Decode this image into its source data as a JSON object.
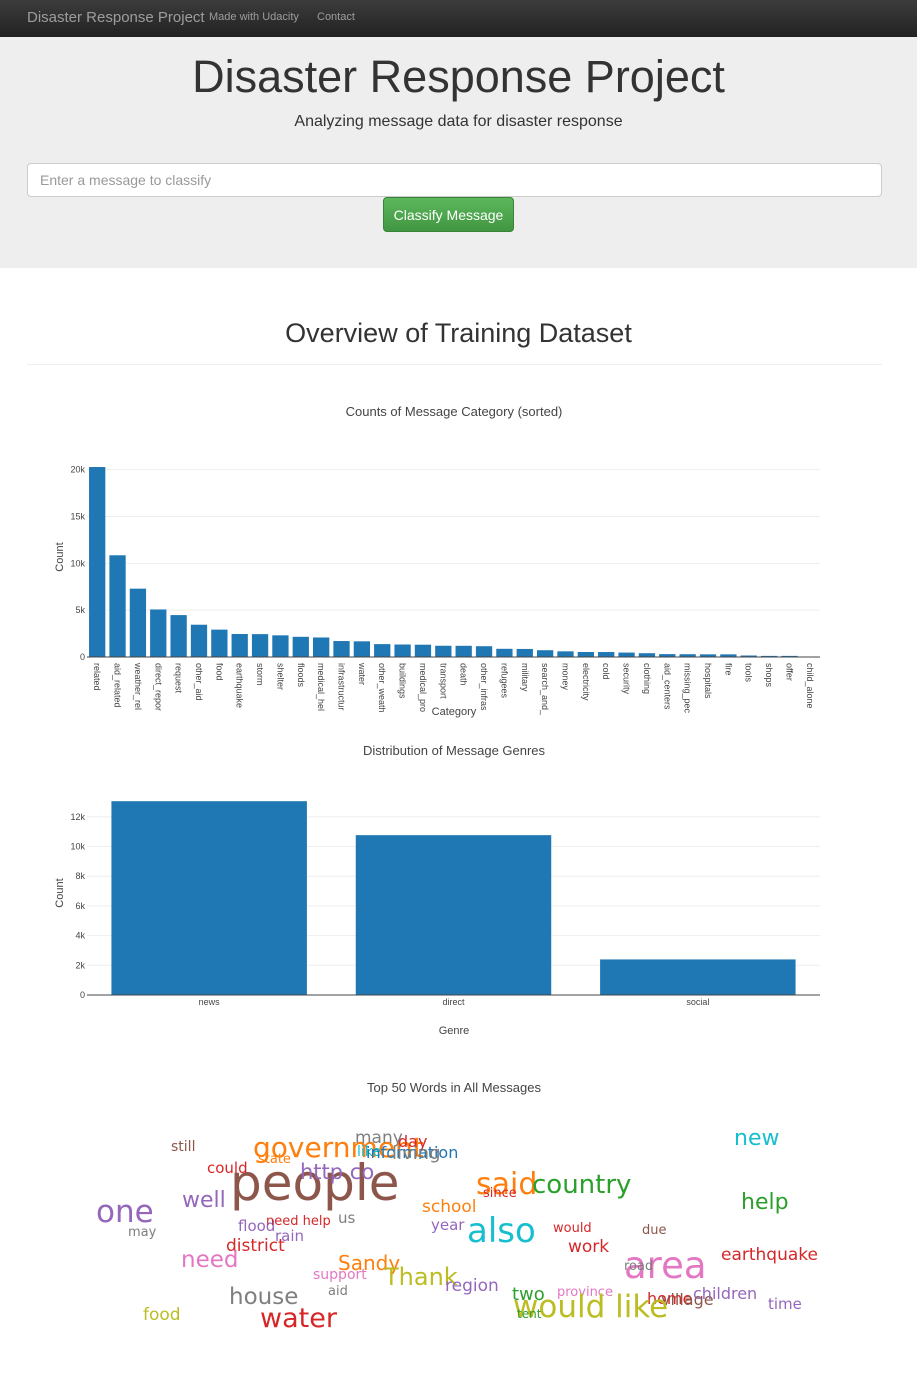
{
  "navbar": {
    "brand": "Disaster Response Project",
    "links": [
      "Made with Udacity",
      "Contact"
    ]
  },
  "header": {
    "title": "Disaster Response Project",
    "subtitle": "Analyzing message data for disaster response",
    "input_placeholder": "Enter a message to classify",
    "button_label": "Classify Message"
  },
  "overview_title": "Overview of Training Dataset",
  "chart_data": [
    {
      "type": "bar",
      "title": "Counts of Message Category (sorted)",
      "xlabel": "Category",
      "ylabel": "Count",
      "ylim": [
        0,
        20500
      ],
      "yticks": [
        0,
        5000,
        10000,
        15000,
        20000
      ],
      "ytick_labels": [
        "0",
        "5k",
        "10k",
        "15k",
        "20k"
      ],
      "categories": [
        "related",
        "aid_related",
        "weather_rel",
        "direct_repor",
        "request",
        "other_aid",
        "food",
        "earthquake",
        "storm",
        "shelter",
        "floods",
        "medical_hel",
        "infrastructur",
        "water",
        "other_weath",
        "buildings",
        "medical_pro",
        "transport",
        "death",
        "other_infras",
        "refugees",
        "military",
        "search_and_",
        "money",
        "electricity",
        "cold",
        "security",
        "clothing",
        "aid_centers",
        "missing_pec",
        "hospitals",
        "fire",
        "tools",
        "shops",
        "offer",
        "child_alone"
      ],
      "values": [
        20282,
        10860,
        7297,
        5075,
        4474,
        3446,
        2923,
        2455,
        2443,
        2314,
        2155,
        2084,
        1705,
        1672,
        1376,
        1333,
        1313,
        1201,
        1194,
        1151,
        875,
        860,
        724,
        604,
        532,
        530,
        471,
        405,
        309,
        298,
        283,
        282,
        159,
        120,
        118,
        0
      ],
      "series_color": "#1f77b4",
      "grid": true
    },
    {
      "type": "bar",
      "title": "Distribution of Message Genres",
      "xlabel": "Genre",
      "ylabel": "Count",
      "ylim": [
        0,
        13000
      ],
      "yticks": [
        0,
        2000,
        4000,
        6000,
        8000,
        10000,
        12000
      ],
      "ytick_labels": [
        "0",
        "2k",
        "4k",
        "6k",
        "8k",
        "10k",
        "12k"
      ],
      "categories": [
        "news",
        "direct",
        "social"
      ],
      "values": [
        13054,
        10766,
        2396
      ],
      "series_color": "#1f77b4",
      "grid": true
    }
  ],
  "wordcloud": {
    "title": "Top 50 Words in All Messages",
    "words": [
      {
        "text": "people",
        "color": "#8c564b"
      },
      {
        "text": "government",
        "color": "#ff7f0e"
      },
      {
        "text": "many",
        "color": "#7f7f7f"
      },
      {
        "text": "day",
        "color": "#d62728"
      },
      {
        "text": "like",
        "color": "#17becf"
      },
      {
        "text": "information",
        "color": "#1f77b4"
      },
      {
        "text": "living",
        "color": "#7f7f7f"
      },
      {
        "text": "still",
        "color": "#8c564b"
      },
      {
        "text": "state",
        "color": "#ff7f0e"
      },
      {
        "text": "could",
        "color": "#d62728"
      },
      {
        "text": "http co",
        "color": "#9467bd"
      },
      {
        "text": "new",
        "color": "#17becf"
      },
      {
        "text": "said",
        "color": "#ff7f0e"
      },
      {
        "text": "country",
        "color": "#2ca02c"
      },
      {
        "text": "since",
        "color": "#d62728"
      },
      {
        "text": "one",
        "color": "#9467bd"
      },
      {
        "text": "well",
        "color": "#9467bd"
      },
      {
        "text": "school",
        "color": "#ff7f0e"
      },
      {
        "text": "help",
        "color": "#2ca02c"
      },
      {
        "text": "may",
        "color": "#7f7f7f"
      },
      {
        "text": "flood",
        "color": "#9467bd"
      },
      {
        "text": "need help",
        "color": "#d62728"
      },
      {
        "text": "us",
        "color": "#7f7f7f"
      },
      {
        "text": "year",
        "color": "#9467bd"
      },
      {
        "text": "also",
        "color": "#17becf"
      },
      {
        "text": "would",
        "color": "#d62728"
      },
      {
        "text": "due",
        "color": "#8c564b"
      },
      {
        "text": "rain",
        "color": "#9467bd"
      },
      {
        "text": "district",
        "color": "#d62728"
      },
      {
        "text": "work",
        "color": "#d62728"
      },
      {
        "text": "need",
        "color": "#e377c2"
      },
      {
        "text": "area",
        "color": "#e377c2"
      },
      {
        "text": "earthquake",
        "color": "#d62728"
      },
      {
        "text": "Sandy",
        "color": "#ff7f0e"
      },
      {
        "text": "support",
        "color": "#e377c2"
      },
      {
        "text": "Thank",
        "color": "#bcbd22"
      },
      {
        "text": "road",
        "color": "#7f7f7f"
      },
      {
        "text": "region",
        "color": "#9467bd"
      },
      {
        "text": "aid",
        "color": "#7f7f7f"
      },
      {
        "text": "house",
        "color": "#7f7f7f"
      },
      {
        "text": "two",
        "color": "#2ca02c"
      },
      {
        "text": "province",
        "color": "#e377c2"
      },
      {
        "text": "home",
        "color": "#d62728"
      },
      {
        "text": "village",
        "color": "#8c564b"
      },
      {
        "text": "children",
        "color": "#9467bd"
      },
      {
        "text": "food",
        "color": "#bcbd22"
      },
      {
        "text": "would like",
        "color": "#bcbd22"
      },
      {
        "text": "tent",
        "color": "#2ca02c"
      },
      {
        "text": "time",
        "color": "#9467bd"
      },
      {
        "text": "water",
        "color": "#d62728"
      }
    ]
  }
}
